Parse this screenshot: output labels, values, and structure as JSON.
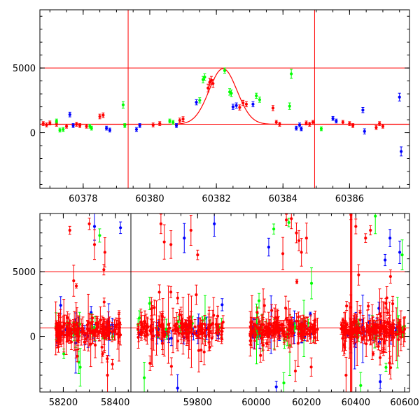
{
  "colors": {
    "red": "#ff0000",
    "green": "#00ff00",
    "blue": "#0000ff",
    "axes": "#000000"
  },
  "chart_data": [
    {
      "type": "scatter",
      "title": "",
      "xlabel": "",
      "ylabel": "",
      "xlim": [
        60376.7,
        60387.8
      ],
      "ylim": [
        -4300,
        9500
      ],
      "x_ticks": [
        60378,
        60380,
        60382,
        60384,
        60386
      ],
      "y_ticks": [
        0,
        5000
      ],
      "x_tick_labels": [
        "60378",
        "60380",
        "60382",
        "60384",
        "60386"
      ],
      "y_tick_labels": [
        "0",
        "5000"
      ],
      "grid": false,
      "horizontal_lines": [
        5000,
        650
      ],
      "vertical_lines": [
        60379.35,
        60384.95
      ],
      "model_curve": {
        "type": "gaussian",
        "baseline": 650,
        "peak": 4950,
        "center": 60382.2,
        "sigma": 0.42
      },
      "series": [
        {
          "color": "red",
          "points": [
            [
              60376.8,
              700,
              150
            ],
            [
              60376.9,
              600,
              150
            ],
            [
              60377.0,
              750,
              150
            ],
            [
              60377.2,
              650,
              150
            ],
            [
              60377.5,
              500,
              150
            ],
            [
              60377.8,
              650,
              150
            ],
            [
              60377.9,
              550,
              150
            ],
            [
              60378.1,
              500,
              150
            ],
            [
              60378.5,
              1250,
              180
            ],
            [
              60378.6,
              1350,
              180
            ],
            [
              60380.1,
              600,
              150
            ],
            [
              60380.3,
              700,
              150
            ],
            [
              60380.9,
              950,
              180
            ],
            [
              60381.0,
              1050,
              180
            ],
            [
              60381.75,
              3450,
              300
            ],
            [
              60381.8,
              3900,
              300
            ],
            [
              60381.85,
              4050,
              300
            ],
            [
              60381.9,
              3800,
              300
            ],
            [
              60382.7,
              1950,
              200
            ],
            [
              60382.8,
              2300,
              200
            ],
            [
              60382.9,
              2200,
              200
            ],
            [
              60383.7,
              1900,
              200
            ],
            [
              60383.8,
              800,
              150
            ],
            [
              60383.9,
              650,
              150
            ],
            [
              60384.7,
              750,
              150
            ],
            [
              60384.8,
              650,
              150
            ],
            [
              60384.9,
              800,
              150
            ],
            [
              60385.8,
              800,
              150
            ],
            [
              60386.0,
              700,
              150
            ],
            [
              60386.1,
              550,
              150
            ],
            [
              60386.8,
              400,
              150
            ],
            [
              60386.9,
              700,
              150
            ],
            [
              60387.0,
              500,
              150
            ]
          ]
        },
        {
          "color": "green",
          "points": [
            [
              60377.2,
              900,
              150
            ],
            [
              60377.3,
              200,
              150
            ],
            [
              60377.4,
              250,
              150
            ],
            [
              60378.2,
              500,
              150
            ],
            [
              60378.25,
              350,
              150
            ],
            [
              60379.2,
              2150,
              250
            ],
            [
              60379.25,
              550,
              150
            ],
            [
              60380.6,
              900,
              150
            ],
            [
              60380.7,
              800,
              150
            ],
            [
              60381.5,
              2500,
              200
            ],
            [
              60381.6,
              4100,
              250
            ],
            [
              60381.65,
              4300,
              250
            ],
            [
              60382.25,
              4800,
              200
            ],
            [
              60382.4,
              3150,
              250
            ],
            [
              60382.45,
              3050,
              250
            ],
            [
              60383.2,
              2850,
              200
            ],
            [
              60383.3,
              2550,
              200
            ],
            [
              60384.2,
              2050,
              250
            ],
            [
              60384.25,
              4550,
              350
            ],
            [
              60385.15,
              300,
              150
            ]
          ]
        },
        {
          "color": "blue",
          "points": [
            [
              60377.6,
              1400,
              180
            ],
            [
              60377.7,
              550,
              150
            ],
            [
              60378.7,
              350,
              150
            ],
            [
              60378.8,
              200,
              150
            ],
            [
              60379.6,
              250,
              150
            ],
            [
              60379.7,
              550,
              150
            ],
            [
              60380.8,
              550,
              150
            ],
            [
              60381.4,
              2350,
              200
            ],
            [
              60382.5,
              2000,
              200
            ],
            [
              60382.6,
              2100,
              200
            ],
            [
              60383.1,
              2200,
              200
            ],
            [
              60384.4,
              350,
              150
            ],
            [
              60384.5,
              600,
              150
            ],
            [
              60384.55,
              300,
              150
            ],
            [
              60385.5,
              1100,
              150
            ],
            [
              60385.6,
              900,
              150
            ],
            [
              60386.4,
              1750,
              200
            ],
            [
              60386.45,
              100,
              200
            ],
            [
              60387.5,
              2750,
              300
            ],
            [
              60387.55,
              -1450,
              350
            ]
          ]
        }
      ]
    },
    {
      "type": "scatter",
      "title": "",
      "xlabel": "",
      "ylabel": "",
      "ylim": [
        -4300,
        9500
      ],
      "x_ticks": [
        58200,
        58400,
        59800,
        60000,
        60200,
        60400,
        60600
      ],
      "y_ticks": [
        0,
        5000
      ],
      "x_tick_labels": [
        "58200",
        "58400",
        "59800",
        "60000",
        "60200",
        "60400",
        "60600"
      ],
      "y_tick_labels": [
        "0",
        "5000"
      ],
      "grid": false,
      "horizontal_lines": [
        5000,
        650
      ],
      "x_axis_break": "broken axis; segments joined without spacing",
      "x_segments": [
        {
          "range": [
            58110,
            58460
          ],
          "data_range": [
            58170,
            58420
          ]
        },
        {
          "range": [
            59600,
            59900
          ],
          "data_range": [
            59620,
            59880
          ]
        },
        {
          "range": [
            59900,
            60270
          ],
          "data_range": [
            59975,
            60245
          ]
        },
        {
          "range": [
            60270,
            60620
          ],
          "data_range": [
            60340,
            60600
          ]
        }
      ],
      "clusters": [
        {
          "x_range": [
            58170,
            58420
          ],
          "baseline": 500,
          "spread": 600,
          "counts": {
            "red": 150,
            "green": 18,
            "blue": 22
          },
          "notable": {
            "red": [
              [
                58225,
                8200
              ],
              [
                58300,
                8700
              ],
              [
                58320,
                7100
              ],
              [
                58370,
                -3000
              ],
              [
                58240,
                4300
              ],
              [
                58360,
                6500
              ]
            ],
            "blue": [
              [
                58320,
                8500
              ],
              [
                58420,
                8400
              ],
              [
                58190,
                2400
              ]
            ],
            "green": [
              [
                58340,
                7800
              ],
              [
                58260,
                -2000
              ]
            ]
          }
        },
        {
          "x_range": [
            59620,
            59880
          ],
          "baseline": 500,
          "spread": 600,
          "counts": {
            "red": 150,
            "green": 18,
            "blue": 22
          },
          "notable": {
            "red": [
              [
                59690,
                8700
              ],
              [
                59700,
                7300
              ],
              [
                59720,
                7100
              ],
              [
                59800,
                6300
              ],
              [
                59780,
                8200
              ]
            ],
            "blue": [
              [
                59760,
                7600
              ],
              [
                59850,
                8700
              ],
              [
                59740,
                -4000
              ]
            ],
            "green": [
              [
                59640,
                -3200
              ]
            ]
          }
        },
        {
          "x_range": [
            59975,
            60245
          ],
          "baseline": 500,
          "spread": 600,
          "counts": {
            "red": 160,
            "green": 22,
            "blue": 22
          },
          "notable": {
            "red": [
              [
                60120,
                9000
              ],
              [
                60140,
                9100
              ],
              [
                60160,
                8000
              ],
              [
                60170,
                7400
              ],
              [
                60180,
                6500
              ],
              [
                60200,
                7600
              ]
            ],
            "blue": [
              [
                60050,
                6900
              ],
              [
                60080,
                -3900
              ]
            ],
            "green": [
              [
                60070,
                8300
              ],
              [
                60130,
                8800
              ],
              [
                60220,
                4100
              ],
              [
                60110,
                -3600
              ]
            ]
          }
        },
        {
          "x_range": [
            60340,
            60600
          ],
          "baseline": 500,
          "spread": 600,
          "counts": {
            "red": 160,
            "green": 22,
            "blue": 22
          },
          "notable": {
            "red": [
              [
                60360,
                -3000
              ],
              [
                60380,
                9400
              ],
              [
                60400,
                8500
              ],
              [
                60440,
                7600
              ],
              [
                60460,
                8200
              ]
            ],
            "blue": [
              [
                60520,
                5900
              ],
              [
                60540,
                7600
              ],
              [
                60580,
                6500
              ],
              [
                60500,
                -3500
              ]
            ],
            "green": [
              [
                60480,
                9300
              ],
              [
                60590,
                6300
              ],
              [
                60420,
                -3800
              ]
            ]
          }
        }
      ]
    }
  ]
}
